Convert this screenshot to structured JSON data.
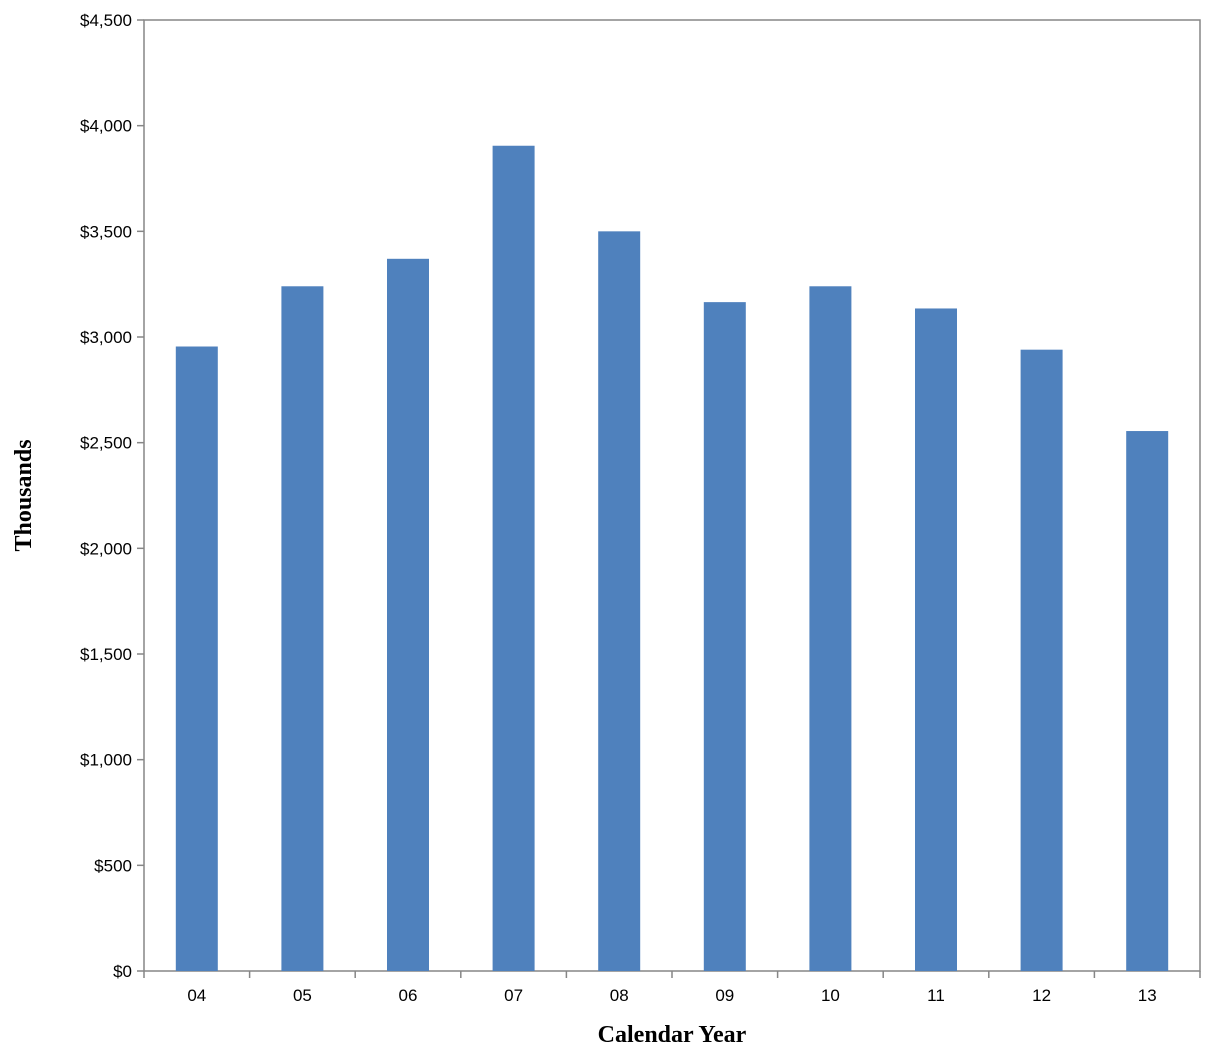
{
  "chart_data": {
    "type": "bar",
    "title": "",
    "xlabel": "Calendar Year",
    "ylabel": "Thousands",
    "categories": [
      "04",
      "05",
      "06",
      "07",
      "08",
      "09",
      "10",
      "11",
      "12",
      "13"
    ],
    "values": [
      2955,
      3240,
      3370,
      3905,
      3500,
      3165,
      3240,
      3135,
      2940,
      2555
    ],
    "ylim": [
      0,
      4500
    ],
    "yticks": [
      0,
      500,
      1000,
      1500,
      2000,
      2500,
      3000,
      3500,
      4000,
      4500
    ],
    "ytick_labels": [
      "$0",
      "$500",
      "$1,000",
      "$1,500",
      "$2,000",
      "$2,500",
      "$3,000",
      "$3,500",
      "$4,000",
      "$4,500"
    ],
    "grid": false,
    "legend": "none",
    "colors": {
      "bar": "#4f81bd",
      "axis": "#868686"
    }
  }
}
